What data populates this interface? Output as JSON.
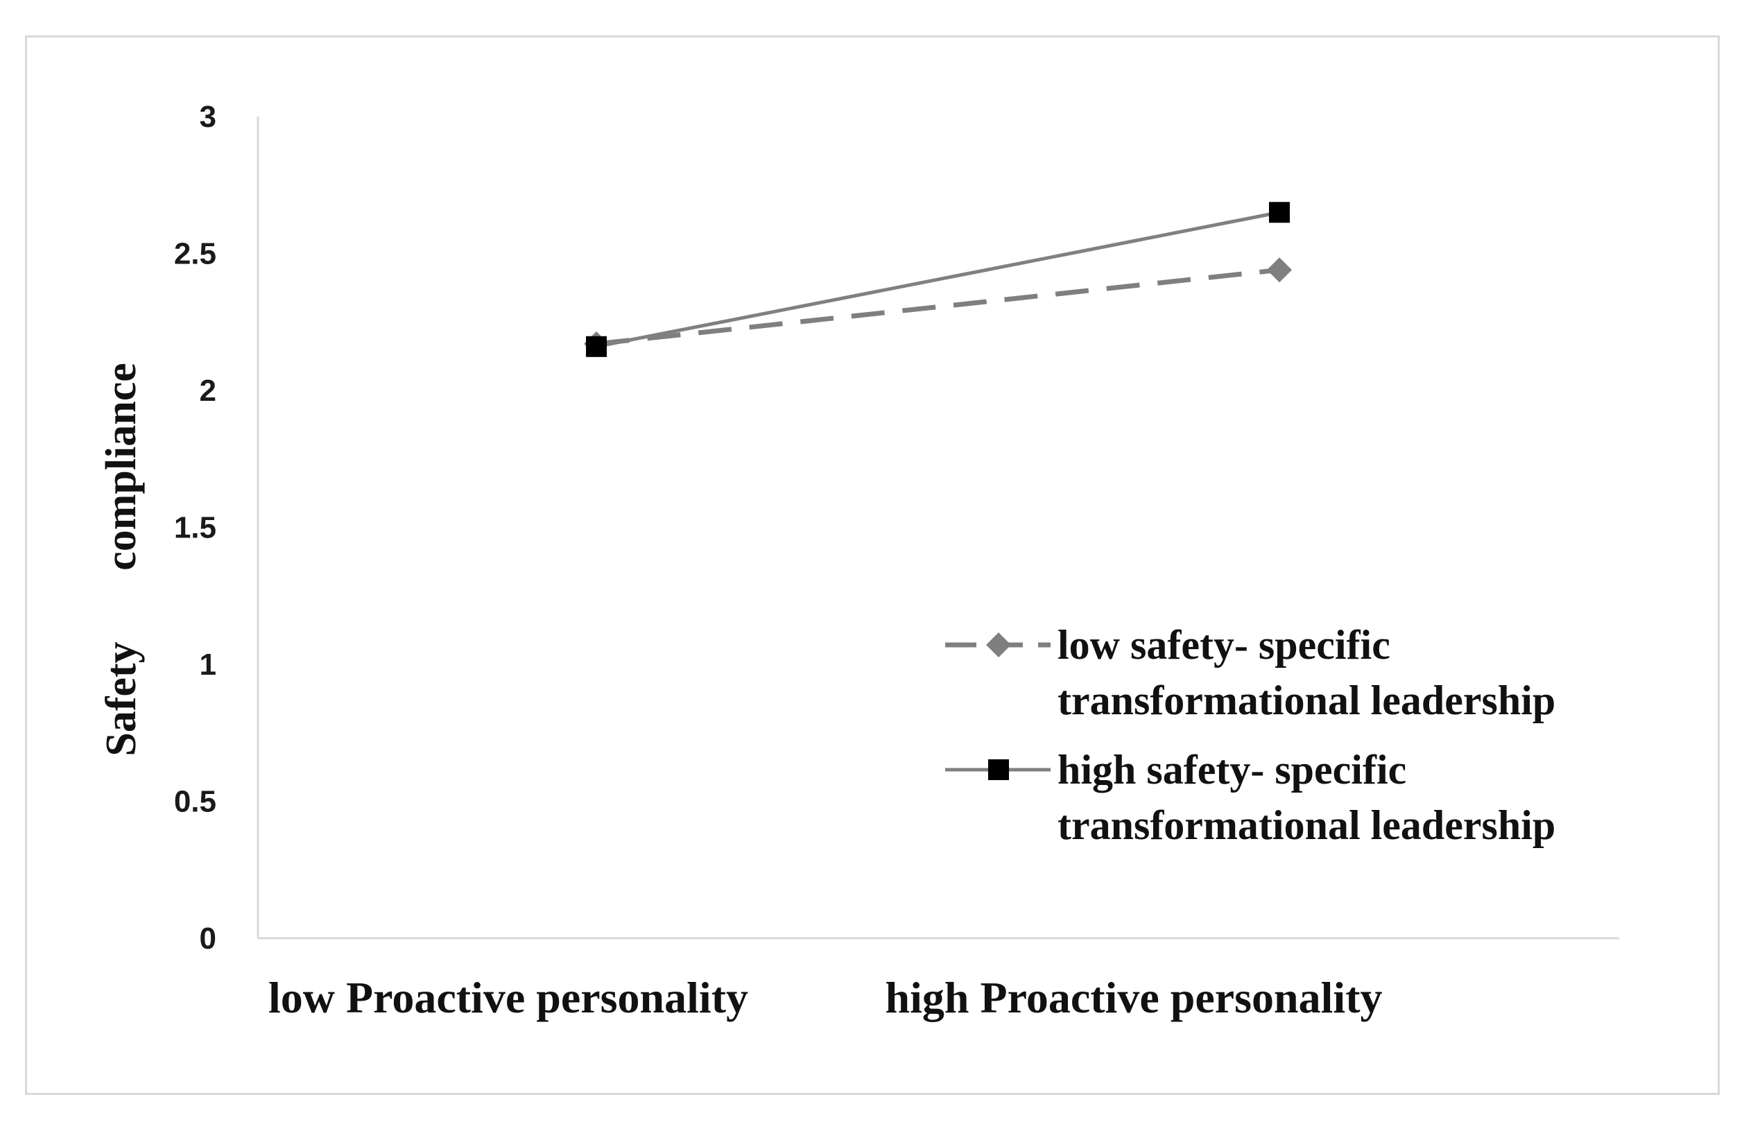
{
  "chart_data": {
    "type": "line",
    "xlabel": "",
    "ylabel": [
      "Safety",
      "compliance"
    ],
    "categories": [
      "low Proactive personality",
      "high Proactive personality"
    ],
    "ylim": [
      0,
      3
    ],
    "yticks": [
      "0",
      "0.5",
      "1",
      "1.5",
      "2",
      "2.5",
      "3"
    ],
    "grid": false,
    "legend_position": "right",
    "series": [
      {
        "name_lines": [
          "low  safety- specific",
          "transformational leadership"
        ],
        "values": [
          2.17,
          2.44
        ],
        "style": "dashed",
        "marker": "diamond",
        "color": "#7f7f7f"
      },
      {
        "name_lines": [
          "high  safety- specific",
          "transformational leadership"
        ],
        "values": [
          2.16,
          2.65
        ],
        "style": "solid",
        "marker": "square",
        "color": "#808080",
        "marker_color": "#000000"
      }
    ]
  }
}
